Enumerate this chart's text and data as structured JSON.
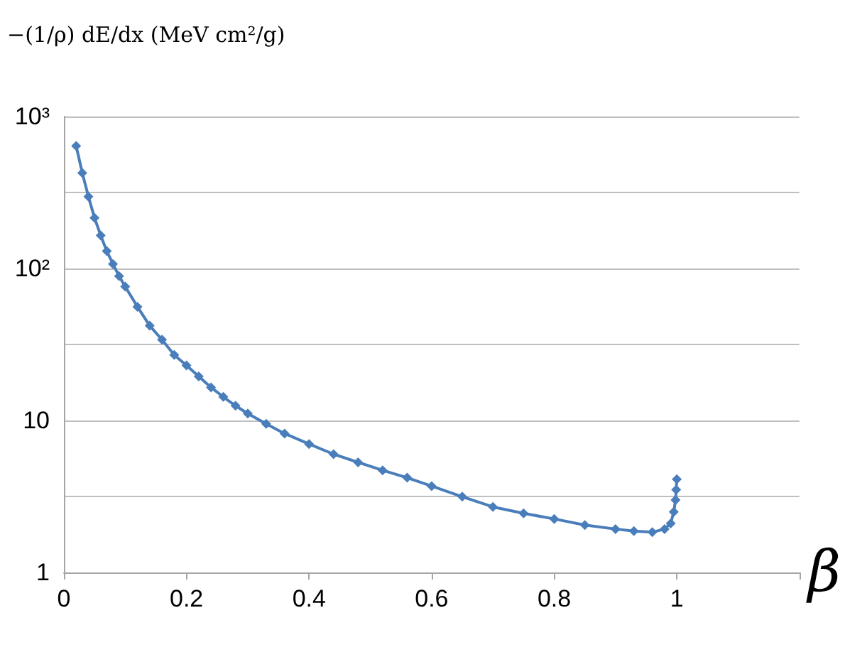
{
  "chart_data": {
    "type": "line",
    "ylabel": "−(1/ρ) dE/dx (MeV cm²/g)",
    "xlabel": "β",
    "x": [
      0.02,
      0.03,
      0.04,
      0.05,
      0.06,
      0.07,
      0.08,
      0.09,
      0.1,
      0.12,
      0.14,
      0.16,
      0.18,
      0.2,
      0.22,
      0.24,
      0.26,
      0.28,
      0.3,
      0.33,
      0.36,
      0.4,
      0.44,
      0.48,
      0.52,
      0.56,
      0.6,
      0.65,
      0.7,
      0.75,
      0.8,
      0.85,
      0.9,
      0.93,
      0.96,
      0.98,
      0.99,
      0.995,
      0.998,
      0.999,
      1.0
    ],
    "series": [
      {
        "color": "#4a7ebb",
        "values": [
          640,
          425,
          297,
          215,
          165,
          130,
          107,
          89,
          76,
          56,
          42,
          34,
          27,
          23,
          19.5,
          16.5,
          14.3,
          12.5,
          11.1,
          9.5,
          8.2,
          7.0,
          6.0,
          5.3,
          4.7,
          4.2,
          3.7,
          3.15,
          2.7,
          2.45,
          2.25,
          2.05,
          1.93,
          1.87,
          1.84,
          1.93,
          2.1,
          2.5,
          3.0,
          3.5,
          4.1
        ]
      }
    ],
    "xlim": [
      0,
      1.2
    ],
    "xticks": [
      0,
      0.2,
      0.4,
      0.6,
      0.8,
      1,
      {
        "value": 1.2,
        "label": null
      }
    ],
    "ylim": [
      1,
      1000
    ],
    "yticks": [
      1,
      {
        "value": 3.162,
        "label": null
      },
      10,
      {
        "value": 31.62,
        "label": null
      },
      {
        "value": 100,
        "label": "10²"
      },
      {
        "value": 316.2,
        "label": null
      },
      {
        "value": 1000,
        "label": "10³"
      }
    ],
    "log": "y",
    "grid": "y",
    "marker": "diamond",
    "line_style": "solid"
  }
}
